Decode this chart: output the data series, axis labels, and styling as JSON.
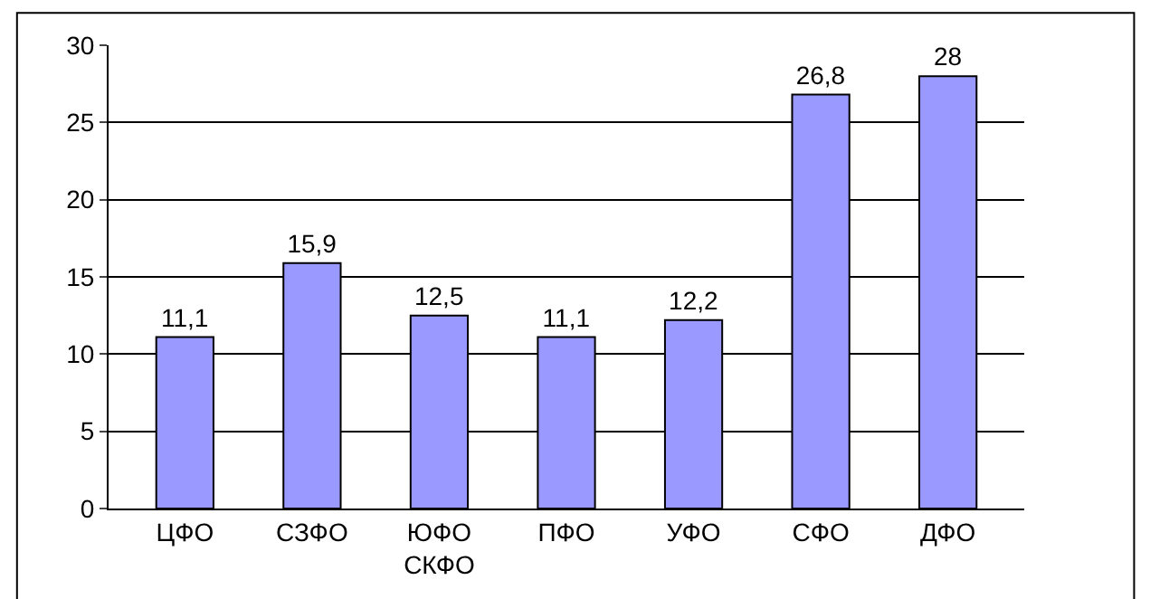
{
  "chart_data": {
    "type": "bar",
    "categories": [
      "ЦФО",
      "СЗФО",
      "ЮФО\nСКФО",
      "ПФО",
      "УФО",
      "СФО",
      "ДФО"
    ],
    "values": [
      11.1,
      15.9,
      12.5,
      11.1,
      12.2,
      26.8,
      28
    ],
    "value_labels": [
      "11,1",
      "15,9",
      "12,5",
      "11,1",
      "12,2",
      "26,8",
      "28"
    ],
    "color": "#9999ff",
    "ylim": [
      0,
      30
    ],
    "yticks": [
      0,
      5,
      10,
      15,
      20,
      25,
      30
    ],
    "grid": "y"
  }
}
